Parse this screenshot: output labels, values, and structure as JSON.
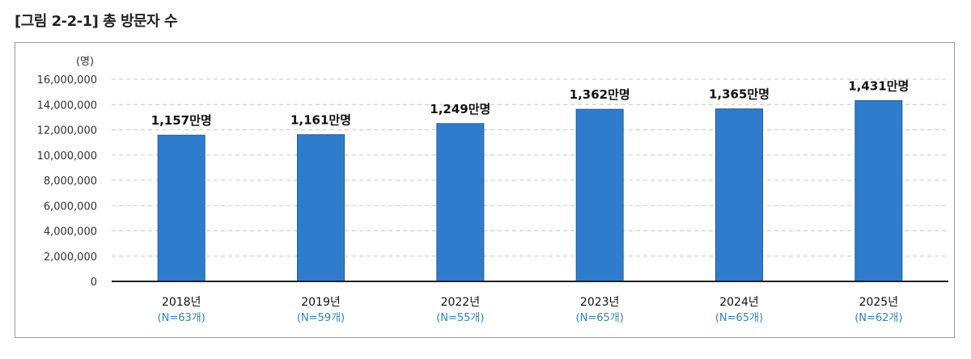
{
  "figure_title": "[그림 2-2-1] 총 방문자 수",
  "chart_data": {
    "type": "bar",
    "title": "[그림 2-2-1] 총 방문자 수",
    "ylabel": "",
    "y_unit": "(명)",
    "ylim": [
      0,
      16000000
    ],
    "yticks": [
      0,
      2000000,
      4000000,
      6000000,
      8000000,
      10000000,
      12000000,
      14000000,
      16000000
    ],
    "ytick_labels": [
      "0",
      "2,000,000",
      "4,000,000",
      "6,000,000",
      "8,000,000",
      "10,000,000",
      "12,000,000",
      "14,000,000",
      "16,000,000"
    ],
    "grid": true,
    "categories": [
      "2018년",
      "2019년",
      "2022년",
      "2023년",
      "2024년",
      "2025년"
    ],
    "category_sublabels": [
      "(N=63개)",
      "(N=59개)",
      "(N=55개)",
      "(N=65개)",
      "(N=65개)",
      "(N=62개)"
    ],
    "values": [
      11570000,
      11610000,
      12490000,
      13620000,
      13650000,
      14310000
    ],
    "data_labels": [
      "1,157만명",
      "1,161만명",
      "1,249만명",
      "1,362만명",
      "1,365만명",
      "1,431만명"
    ],
    "bar_color": "#2f7ccc",
    "sublabel_color": "#2b86c9"
  }
}
